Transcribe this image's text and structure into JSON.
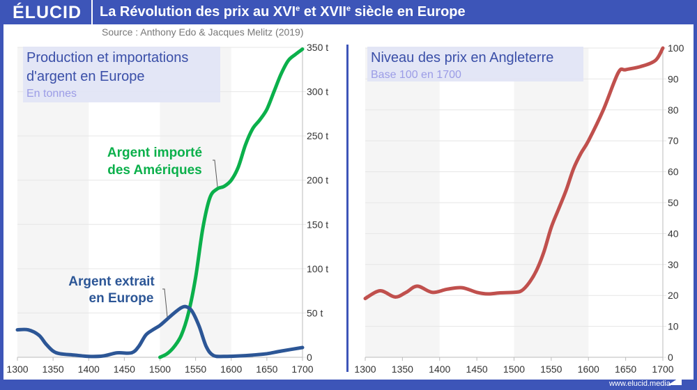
{
  "header": {
    "logo": "ÉLUCID",
    "title_main": "La Révolution des prix au XVI",
    "title_sup1": "e",
    "title_mid": " et XVII",
    "title_sup2": "e",
    "title_end": " siècle en Europe"
  },
  "source": "Source : Anthony Edo & Jacques Melitz (2019)",
  "footer": "www.elucid.media",
  "colors": {
    "brand": "#3d55b8",
    "green": "#0bb04b",
    "blue": "#2c5696",
    "red": "#c0504d",
    "title_box": "#e1e4f5"
  },
  "chart_data": [
    {
      "type": "line",
      "title": "Production et importations d'argent en Europe",
      "subtitle": "En tonnes",
      "xlim": [
        1300,
        1700
      ],
      "ylim": [
        0,
        350
      ],
      "x_ticks": [
        "1300",
        "1350",
        "1400",
        "1450",
        "1500",
        "1550",
        "1600",
        "1650",
        "1700"
      ],
      "y_ticks": [
        "0",
        "50 t",
        "100 t",
        "150 t",
        "200 t",
        "250 t",
        "300 t",
        "350 t"
      ],
      "grid": true,
      "shaded_periods": [
        [
          1300,
          1400
        ],
        [
          1500,
          1600
        ]
      ],
      "series": [
        {
          "name": "Argent importé des Amériques",
          "label_lines": [
            "Argent importé",
            "des Amériques"
          ],
          "color": "#0bb04b",
          "x": [
            1500,
            1510,
            1520,
            1530,
            1540,
            1550,
            1560,
            1570,
            1580,
            1590,
            1600,
            1610,
            1620,
            1630,
            1640,
            1650,
            1660,
            1670,
            1680,
            1690,
            1700
          ],
          "y": [
            0,
            4,
            12,
            25,
            50,
            90,
            145,
            180,
            190,
            193,
            200,
            215,
            240,
            258,
            268,
            280,
            300,
            320,
            335,
            342,
            348
          ]
        },
        {
          "name": "Argent extrait en Europe",
          "label_lines": [
            "Argent extrait",
            "en Europe"
          ],
          "color": "#2c5696",
          "x": [
            1300,
            1315,
            1330,
            1340,
            1350,
            1360,
            1380,
            1400,
            1420,
            1440,
            1460,
            1470,
            1480,
            1490,
            1500,
            1510,
            1520,
            1530,
            1537,
            1545,
            1555,
            1565,
            1575,
            1590,
            1610,
            1630,
            1650,
            1670,
            1700
          ],
          "y": [
            31,
            31,
            25,
            15,
            7,
            4,
            2.5,
            1,
            1.5,
            5,
            5,
            12,
            25,
            31,
            36,
            43,
            50,
            56,
            57,
            52,
            35,
            12,
            2,
            1,
            1.5,
            2.5,
            4,
            7,
            11
          ]
        }
      ]
    },
    {
      "type": "line",
      "title": "Niveau des prix en Angleterre",
      "subtitle": "Base 100 en 1700",
      "xlim": [
        1300,
        1700
      ],
      "ylim": [
        0,
        100
      ],
      "x_ticks": [
        "1300",
        "1350",
        "1400",
        "1450",
        "1500",
        "1550",
        "1600",
        "1650",
        "1700"
      ],
      "y_ticks": [
        "0",
        "10",
        "20",
        "30",
        "40",
        "50",
        "60",
        "70",
        "80",
        "90",
        "100"
      ],
      "grid": true,
      "shaded_periods": [
        [
          1300,
          1400
        ],
        [
          1500,
          1600
        ]
      ],
      "series": [
        {
          "color": "#c0504d",
          "x": [
            1300,
            1320,
            1340,
            1355,
            1370,
            1390,
            1410,
            1430,
            1450,
            1465,
            1480,
            1500,
            1510,
            1520,
            1530,
            1540,
            1550,
            1560,
            1570,
            1580,
            1590,
            1600,
            1620,
            1640,
            1650,
            1670,
            1690,
            1700
          ],
          "y": [
            19,
            21.5,
            19.5,
            21,
            23,
            21,
            22,
            22.5,
            21,
            20.5,
            20.8,
            21,
            21.5,
            24,
            28,
            34,
            42,
            48,
            54,
            61,
            66,
            70,
            80,
            92,
            93,
            94,
            96,
            100
          ]
        }
      ]
    }
  ]
}
